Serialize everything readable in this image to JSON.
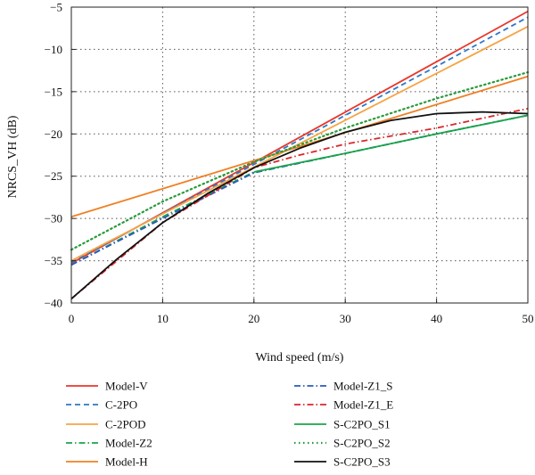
{
  "chart_data": {
    "type": "line",
    "title": "",
    "xlabel": "Wind speed (m/s)",
    "ylabel": "NRCS_VH (dB)",
    "xlim": [
      0,
      50
    ],
    "ylim": [
      -40,
      -5
    ],
    "xticks": [
      0,
      10,
      20,
      30,
      40,
      50
    ],
    "yticks": [
      -40,
      -35,
      -30,
      -25,
      -20,
      -15,
      -10,
      -5
    ],
    "grid": true,
    "legend_position": "bottom",
    "series": [
      {
        "name": "Model-V",
        "color": "#e8372b",
        "dash": "solid",
        "x": [
          0,
          50
        ],
        "y": [
          -35.3,
          -5.5
        ]
      },
      {
        "name": "C-2PO",
        "color": "#2e78c8",
        "dash": "dashed",
        "x": [
          0,
          50
        ],
        "y": [
          -35.2,
          -6.2
        ]
      },
      {
        "name": "C-2POD",
        "color": "#f5a445",
        "dash": "solid",
        "x": [
          0,
          50
        ],
        "y": [
          -35.0,
          -7.3
        ]
      },
      {
        "name": "Model-Z2",
        "color": "#1aa44a",
        "dash": "dashdot",
        "x": [
          0,
          10,
          20,
          30,
          40,
          50
        ],
        "y": [
          -35.5,
          -29.8,
          -24.5,
          -22.3,
          -20.0,
          -17.8
        ]
      },
      {
        "name": "Model-H",
        "color": "#f07f22",
        "dash": "solid",
        "x": [
          0,
          50
        ],
        "y": [
          -29.8,
          -13.2
        ]
      },
      {
        "name": "Model-Z1_S",
        "color": "#2a5bbf",
        "dash": "dashdot",
        "x": [
          0,
          10,
          20,
          30,
          40,
          50
        ],
        "y": [
          -35.5,
          -30.0,
          -24.6,
          -22.3,
          -20.0,
          -17.8
        ]
      },
      {
        "name": "Model-Z1_E",
        "color": "#d9262b",
        "dash": "dashdot",
        "x": [
          0,
          10,
          20,
          25,
          30,
          40,
          50
        ],
        "y": [
          -39.5,
          -30.5,
          -24.0,
          -22.5,
          -21.2,
          -19.3,
          -17.0
        ]
      },
      {
        "name": "S-C2PO_S1",
        "color": "#1aa44a",
        "dash": "solid",
        "x": [
          20,
          30,
          40,
          50
        ],
        "y": [
          -24.5,
          -22.3,
          -20.0,
          -17.8
        ]
      },
      {
        "name": "S-C2PO_S2",
        "color": "#2a9a3a",
        "dash": "dotted",
        "x": [
          0,
          10,
          20,
          30,
          40,
          50
        ],
        "y": [
          -33.7,
          -28.0,
          -23.3,
          -19.3,
          -15.8,
          -12.7
        ]
      },
      {
        "name": "S-C2PO_S3",
        "color": "#111111",
        "dash": "solid",
        "x": [
          0,
          5,
          10,
          15,
          20,
          25,
          30,
          35,
          40,
          45,
          50
        ],
        "y": [
          -39.5,
          -34.8,
          -30.5,
          -27.0,
          -24.0,
          -21.7,
          -19.8,
          -18.4,
          -17.6,
          -17.4,
          -17.6
        ]
      }
    ]
  }
}
